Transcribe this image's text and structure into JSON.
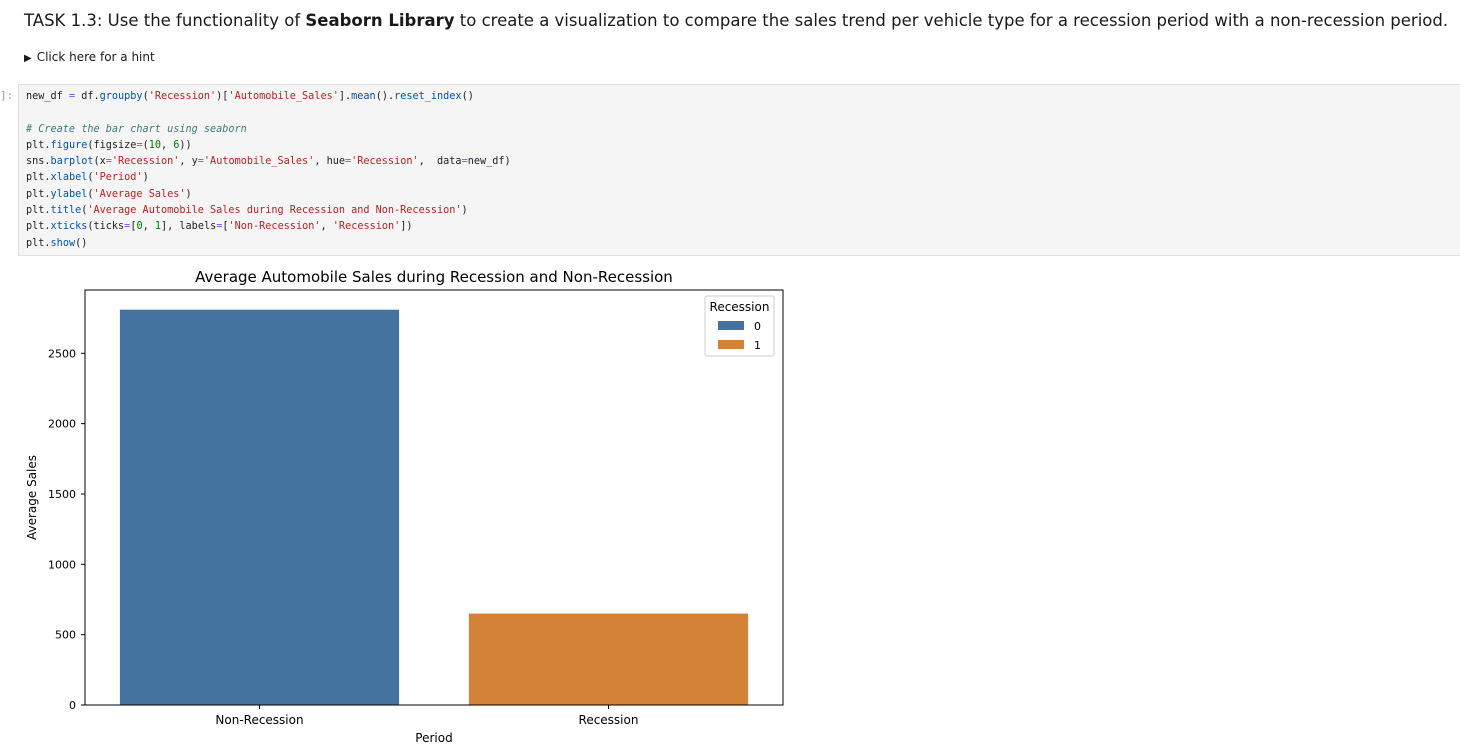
{
  "task": {
    "prefix": "TASK 1.3: Use the functionality of ",
    "bold": "Seaborn Library",
    "suffix": " to create a visualization to compare the sales trend per vehicle type for a recession period with a non-recession period."
  },
  "hint": {
    "label": "Click here for a hint"
  },
  "cell": {
    "prompt": "]:",
    "code_lines": [
      "new_df = df.groupby('Recession')['Automobile_Sales'].mean().reset_index()",
      "",
      "# Create the bar chart using seaborn",
      "plt.figure(figsize=(10, 6))",
      "sns.barplot(x='Recession', y='Automobile_Sales', hue='Recession',  data=new_df)",
      "plt.xlabel('Period')",
      "plt.ylabel('Average Sales')",
      "plt.title('Average Automobile Sales during Recession and Non-Recession')",
      "plt.xticks(ticks=[0, 1], labels=['Non-Recession', 'Recession'])",
      "plt.show()"
    ]
  },
  "chart_data": {
    "type": "bar",
    "title": "Average Automobile Sales during Recession and Non-Recession",
    "xlabel": "Period",
    "ylabel": "Average Sales",
    "categories": [
      "Non-Recession",
      "Recession"
    ],
    "values": [
      2810,
      650
    ],
    "ylim": [
      0,
      2950
    ],
    "yticks": [
      0,
      500,
      1000,
      1500,
      2000,
      2500
    ],
    "grid": false,
    "legend": {
      "title": "Recession",
      "placement": "top-right",
      "entries": [
        {
          "label": "0",
          "color": "#4473a0"
        },
        {
          "label": "1",
          "color": "#d48237"
        }
      ]
    },
    "colors": [
      "#4473a0",
      "#d48237"
    ]
  }
}
